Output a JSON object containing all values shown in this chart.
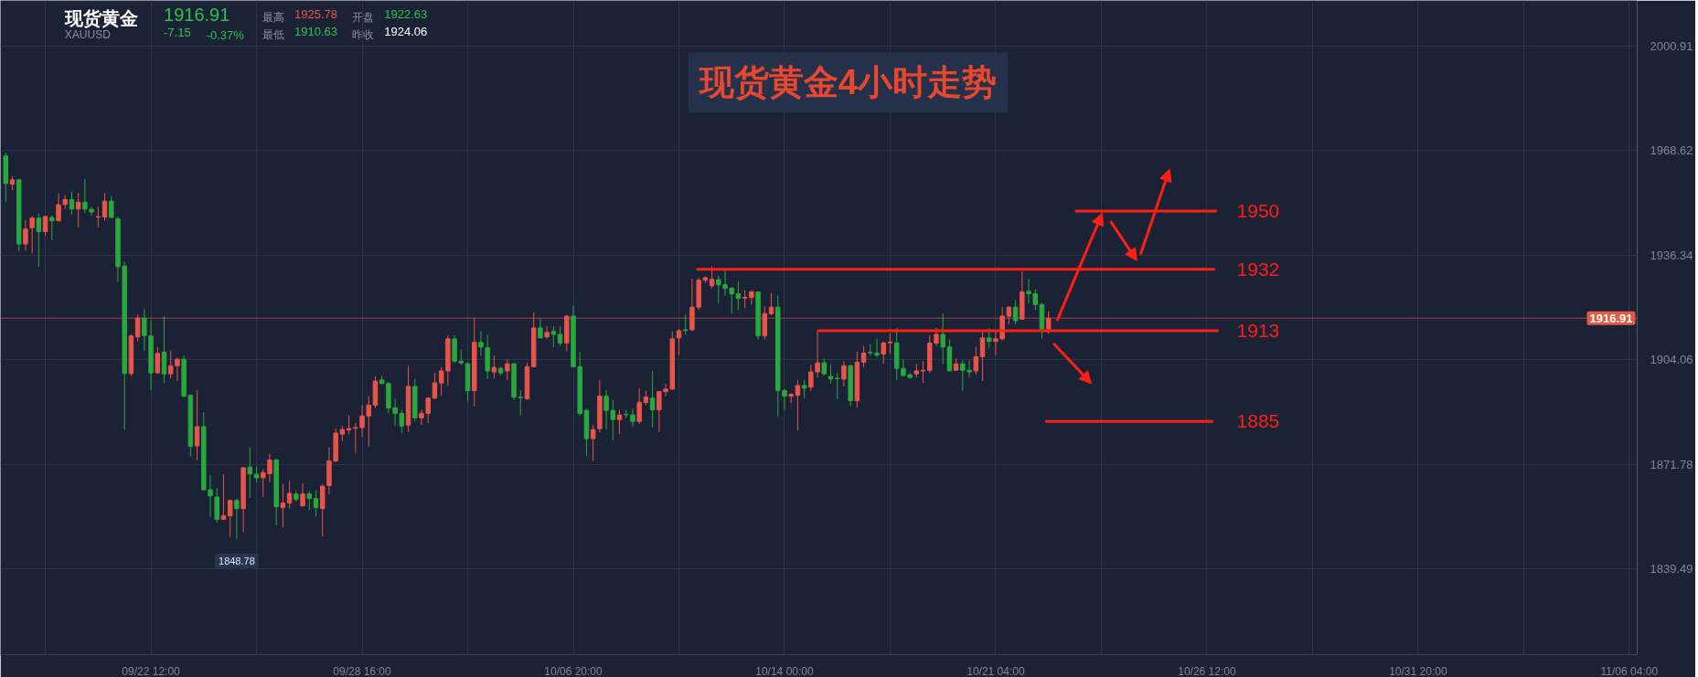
{
  "chart_data": {
    "type": "candlestick",
    "title": "现货黄金4小时走势",
    "categories": [
      null,
      null,
      null,
      null,
      null,
      null,
      null,
      null,
      null,
      null,
      null,
      null,
      null,
      null,
      null,
      null,
      null,
      null,
      null,
      null,
      null,
      null,
      "09/22 12:00",
      null,
      null,
      null,
      null,
      null,
      null,
      null,
      null,
      null,
      null,
      null,
      null,
      null,
      null,
      null,
      null,
      null,
      null,
      null,
      null,
      null,
      null,
      null,
      null,
      null,
      null,
      null,
      null,
      null,
      null,
      null,
      "09/28 16:00",
      null,
      null,
      null,
      null,
      null,
      null,
      null,
      null,
      null,
      null,
      null,
      null,
      null,
      null,
      null,
      null,
      null,
      null,
      null,
      null,
      null,
      null,
      null,
      null,
      null,
      null,
      null,
      null,
      null,
      null,
      null,
      "10/06 20:00",
      null,
      null,
      null,
      null,
      null,
      null,
      null,
      null,
      null,
      null,
      null,
      null,
      null,
      null,
      null,
      null,
      null,
      null,
      null,
      null,
      null,
      null,
      null,
      null,
      null,
      null,
      null,
      null,
      null,
      null,
      null,
      "10/14 00:00",
      null,
      null,
      null,
      null,
      null,
      null,
      null,
      null,
      null,
      null,
      null,
      null,
      null,
      null,
      null,
      null,
      null,
      null,
      null,
      null,
      null,
      null,
      null,
      null,
      null,
      null,
      null,
      null,
      null,
      null,
      null,
      "10/21 04:00",
      null,
      null,
      null,
      null,
      null,
      null,
      null,
      null,
      null,
      null,
      null,
      null,
      null,
      null,
      null,
      null,
      null,
      null,
      null,
      null,
      null,
      null,
      null,
      null,
      null,
      null,
      null,
      null,
      null,
      null,
      null,
      "10/26 12:00",
      null,
      null,
      null,
      null,
      null,
      null,
      null,
      null,
      null,
      null,
      null,
      null,
      null,
      null,
      null,
      null,
      null,
      null,
      null,
      null,
      null,
      null,
      null,
      null,
      null,
      null,
      null,
      null,
      null,
      null,
      null,
      "10/31 20:00",
      null,
      null,
      null,
      null,
      null,
      null,
      null,
      null,
      null,
      null,
      null,
      null,
      null,
      null,
      null,
      null,
      null,
      null,
      null,
      null,
      null,
      null,
      null,
      null,
      null,
      null,
      null,
      null,
      null,
      null,
      null,
      "11/06 04:00"
    ],
    "ohlc": [
      [
        1967.0,
        1968.0,
        1952.7,
        1958.5
      ],
      [
        1958.3,
        1960.8,
        1956.4,
        1959.6
      ],
      [
        1959.6,
        1959.9,
        1937.5,
        1939.8
      ],
      [
        1939.8,
        1947.2,
        1937.7,
        1944.4
      ],
      [
        1944.8,
        1948.5,
        1937.0,
        1947.8
      ],
      [
        1947.8,
        1949.3,
        1932.8,
        1943.6
      ],
      [
        1943.6,
        1948.5,
        1942.3,
        1948.3
      ],
      [
        1948.0,
        1948.7,
        1940.9,
        1947.0
      ],
      [
        1947.0,
        1955.5,
        1946.7,
        1951.9
      ],
      [
        1952.0,
        1954.9,
        1950.6,
        1953.5
      ],
      [
        1953.5,
        1956.0,
        1948.9,
        1950.6
      ],
      [
        1950.6,
        1955.5,
        1945.0,
        1952.7
      ],
      [
        1952.7,
        1959.9,
        1949.5,
        1950.6
      ],
      [
        1950.5,
        1951.3,
        1948.6,
        1949.7
      ],
      [
        1948.1,
        1951.3,
        1945.0,
        1948.2
      ],
      [
        1948.1,
        1955.5,
        1947.0,
        1953.0
      ],
      [
        1953.0,
        1954.6,
        1947.8,
        1948.0
      ],
      [
        1947.6,
        1948.3,
        1928.1,
        1932.8
      ],
      [
        1933.0,
        1934.4,
        1882.4,
        1899.8
      ],
      [
        1899.8,
        1911.9,
        1899.0,
        1911.4
      ],
      [
        1911.1,
        1918.0,
        1909.7,
        1916.9
      ],
      [
        1916.9,
        1919.7,
        1906.8,
        1911.5
      ],
      [
        1911.4,
        1916.1,
        1894.7,
        1900.0
      ],
      [
        1900.0,
        1908.0,
        1899.7,
        1906.0
      ],
      [
        1906.4,
        1917.5,
        1896.8,
        1899.7
      ],
      [
        1899.7,
        1906.9,
        1898.3,
        1902.2
      ],
      [
        1902.2,
        1904.7,
        1897.5,
        1904.2
      ],
      [
        1904.2,
        1905.3,
        1892.5,
        1892.8
      ],
      [
        1893.1,
        1893.2,
        1874.2,
        1877.3
      ],
      [
        1877.5,
        1894.7,
        1873.1,
        1883.4
      ],
      [
        1883.4,
        1887.8,
        1863.8,
        1863.9
      ],
      [
        1863.9,
        1868.4,
        1855.6,
        1862.0
      ],
      [
        1861.7,
        1864.5,
        1853.7,
        1854.8
      ],
      [
        1854.8,
        1868.7,
        1854.7,
        1855.9
      ],
      [
        1855.9,
        1860.9,
        1849.3,
        1860.6
      ],
      [
        1860.6,
        1861.2,
        1848.78,
        1858.1
      ],
      [
        1858.1,
        1871.0,
        1850.9,
        1870.7
      ],
      [
        1870.9,
        1877.0,
        1861.4,
        1868.8
      ],
      [
        1868.7,
        1871.2,
        1866.2,
        1867.6
      ],
      [
        1867.6,
        1870.3,
        1861.7,
        1869.2
      ],
      [
        1868.9,
        1875.0,
        1866.2,
        1873.1
      ],
      [
        1873.1,
        1873.6,
        1852.9,
        1858.7
      ],
      [
        1858.4,
        1865.6,
        1852.3,
        1859.8
      ],
      [
        1859.8,
        1866.7,
        1858.1,
        1862.8
      ],
      [
        1862.6,
        1863.7,
        1860.3,
        1860.9
      ],
      [
        1858.9,
        1865.9,
        1858.8,
        1862.6
      ],
      [
        1862.6,
        1863.4,
        1857.6,
        1861.2
      ],
      [
        1861.2,
        1863.7,
        1855.6,
        1858.4
      ],
      [
        1858.1,
        1865.6,
        1849.5,
        1865.0
      ],
      [
        1865.2,
        1877.0,
        1862.6,
        1872.8
      ],
      [
        1872.8,
        1882.8,
        1872.5,
        1881.4
      ],
      [
        1881.1,
        1883.6,
        1878.9,
        1882.5
      ],
      [
        1882.4,
        1887.0,
        1881.1,
        1882.8
      ],
      [
        1882.9,
        1884.5,
        1875.3,
        1883.1
      ],
      [
        1883.1,
        1890.0,
        1880.3,
        1886.7
      ],
      [
        1886.7,
        1892.8,
        1877.3,
        1890.0
      ],
      [
        1890.0,
        1898.9,
        1889.2,
        1897.5
      ],
      [
        1897.8,
        1899.2,
        1896.6,
        1896.7
      ],
      [
        1896.7,
        1897.2,
        1887.5,
        1889.2
      ],
      [
        1889.2,
        1892.0,
        1883.6,
        1887.5
      ],
      [
        1887.5,
        1888.6,
        1881.4,
        1883.6
      ],
      [
        1883.9,
        1902.2,
        1881.7,
        1895.8
      ],
      [
        1895.8,
        1898.1,
        1885.0,
        1886.1
      ],
      [
        1886.1,
        1888.6,
        1883.9,
        1887.5
      ],
      [
        1887.5,
        1892.5,
        1884.5,
        1892.2
      ],
      [
        1892.2,
        1900.0,
        1892.0,
        1896.9
      ],
      [
        1896.9,
        1901.9,
        1893.1,
        1900.6
      ],
      [
        1900.6,
        1911.7,
        1896.1,
        1910.5
      ],
      [
        1910.5,
        1911.7,
        1903.1,
        1903.6
      ],
      [
        1903.6,
        1907.2,
        1902.5,
        1903.1
      ],
      [
        1902.8,
        1903.3,
        1891.1,
        1894.5
      ],
      [
        1894.5,
        1916.9,
        1889.7,
        1909.4
      ],
      [
        1909.4,
        1912.8,
        1905.3,
        1908.0
      ],
      [
        1907.8,
        1911.9,
        1898.1,
        1900.6
      ],
      [
        1900.3,
        1905.3,
        1898.3,
        1901.7
      ],
      [
        1901.4,
        1901.9,
        1899.2,
        1900.0
      ],
      [
        1900.6,
        1904.2,
        1897.8,
        1902.8
      ],
      [
        1902.8,
        1903.1,
        1891.7,
        1892.5
      ],
      [
        1892.5,
        1894.7,
        1887.0,
        1892.3
      ],
      [
        1892.0,
        1903.1,
        1891.7,
        1901.9
      ],
      [
        1901.9,
        1918.6,
        1901.7,
        1913.9
      ],
      [
        1913.9,
        1916.9,
        1910.7,
        1910.8
      ],
      [
        1911.1,
        1914.4,
        1910.5,
        1912.5
      ],
      [
        1912.8,
        1914.4,
        1908.0,
        1911.9
      ],
      [
        1911.9,
        1914.4,
        1908.3,
        1909.2
      ],
      [
        1909.2,
        1917.8,
        1906.7,
        1917.5
      ],
      [
        1917.5,
        1920.8,
        1901.7,
        1901.9
      ],
      [
        1901.9,
        1906.4,
        1886.7,
        1887.5
      ],
      [
        1888.4,
        1888.9,
        1874.5,
        1879.7
      ],
      [
        1879.7,
        1883.9,
        1872.8,
        1882.5
      ],
      [
        1882.8,
        1897.8,
        1881.7,
        1892.8
      ],
      [
        1892.8,
        1894.7,
        1882.5,
        1888.4
      ],
      [
        1888.4,
        1891.7,
        1879.2,
        1885.6
      ],
      [
        1885.6,
        1888.6,
        1881.1,
        1887.0
      ],
      [
        1887.2,
        1888.6,
        1886.1,
        1887.1
      ],
      [
        1887.0,
        1888.9,
        1883.4,
        1885.0
      ],
      [
        1885.0,
        1895.3,
        1884.2,
        1890.9
      ],
      [
        1890.9,
        1894.5,
        1890.0,
        1892.5
      ],
      [
        1892.2,
        1900.6,
        1883.1,
        1888.6
      ],
      [
        1888.6,
        1894.3,
        1881.7,
        1894.2
      ],
      [
        1894.2,
        1896.7,
        1892.8,
        1895.0
      ],
      [
        1895.0,
        1912.8,
        1894.7,
        1910.5
      ],
      [
        1910.8,
        1913.6,
        1905.5,
        1913.0
      ],
      [
        1913.3,
        1918.0,
        1911.7,
        1913.1
      ],
      [
        1913.3,
        1929.1,
        1912.8,
        1920.3
      ],
      [
        1920.3,
        1929.4,
        1919.4,
        1928.6
      ],
      [
        1928.6,
        1929.7,
        1927.7,
        1929.4
      ],
      [
        1926.9,
        1932.9,
        1926.1,
        1928.9
      ],
      [
        1928.8,
        1930.0,
        1921.4,
        1927.2
      ],
      [
        1927.2,
        1931.9,
        1923.9,
        1926.1
      ],
      [
        1926.1,
        1926.6,
        1918.3,
        1924.4
      ],
      [
        1924.4,
        1928.3,
        1919.4,
        1923.0
      ],
      [
        1923.1,
        1925.5,
        1920.0,
        1923.3
      ],
      [
        1923.3,
        1925.5,
        1921.1,
        1925.0
      ],
      [
        1925.0,
        1925.1,
        1910.3,
        1911.4
      ],
      [
        1911.4,
        1920.5,
        1910.3,
        1918.3
      ],
      [
        1918.3,
        1924.7,
        1917.8,
        1920.3
      ],
      [
        1920.3,
        1923.9,
        1886.4,
        1894.5
      ],
      [
        1894.5,
        1895.0,
        1888.6,
        1892.8
      ],
      [
        1892.8,
        1893.6,
        1890.6,
        1893.4
      ],
      [
        1893.1,
        1897.8,
        1882.2,
        1896.1
      ],
      [
        1896.1,
        1897.8,
        1892.2,
        1895.3
      ],
      [
        1895.6,
        1902.5,
        1894.5,
        1900.3
      ],
      [
        1900.3,
        1913.0,
        1898.6,
        1903.1
      ],
      [
        1903.1,
        1904.4,
        1899.2,
        1899.7
      ],
      [
        1898.9,
        1902.5,
        1896.7,
        1898.1
      ],
      [
        1898.3,
        1900.0,
        1891.9,
        1898.2
      ],
      [
        1898.1,
        1903.6,
        1895.8,
        1902.2
      ],
      [
        1902.2,
        1902.5,
        1889.7,
        1891.4
      ],
      [
        1891.4,
        1906.6,
        1889.4,
        1903.3
      ],
      [
        1903.3,
        1908.3,
        1901.7,
        1906.1
      ],
      [
        1906.4,
        1908.9,
        1905.3,
        1906.2
      ],
      [
        1906.1,
        1910.5,
        1904.7,
        1905.5
      ],
      [
        1905.8,
        1909.7,
        1902.8,
        1909.2
      ],
      [
        1909.3,
        1912.2,
        1905.8,
        1909.5
      ],
      [
        1909.2,
        1913.9,
        1897.8,
        1901.4
      ],
      [
        1901.4,
        1904.2,
        1898.9,
        1899.2
      ],
      [
        1899.4,
        1900.0,
        1898.1,
        1898.6
      ],
      [
        1899.7,
        1902.8,
        1898.6,
        1900.6
      ],
      [
        1900.6,
        1903.6,
        1896.9,
        1900.8
      ],
      [
        1900.8,
        1911.6,
        1900.0,
        1909.2
      ],
      [
        1909.2,
        1913.9,
        1908.3,
        1911.9
      ],
      [
        1911.9,
        1918.3,
        1902.8,
        1908.0
      ],
      [
        1908.0,
        1910.3,
        1900.5,
        1900.6
      ],
      [
        1900.8,
        1904.4,
        1900.7,
        1902.8
      ],
      [
        1902.8,
        1903.9,
        1894.5,
        1900.8
      ],
      [
        1900.8,
        1903.9,
        1898.6,
        1900.3
      ],
      [
        1900.6,
        1908.0,
        1899.5,
        1905.0
      ],
      [
        1905.0,
        1913.0,
        1897.5,
        1910.8
      ],
      [
        1910.8,
        1913.9,
        1907.5,
        1909.7
      ],
      [
        1909.7,
        1913.0,
        1905.5,
        1910.5
      ],
      [
        1910.5,
        1920.3,
        1910.0,
        1917.5
      ],
      [
        1917.5,
        1920.5,
        1915.0,
        1920.3
      ],
      [
        1920.3,
        1922.5,
        1915.0,
        1916.1
      ],
      [
        1916.6,
        1931.3,
        1916.4,
        1925.0
      ],
      [
        1925.2,
        1929.1,
        1921.4,
        1924.4
      ],
      [
        1924.4,
        1925.8,
        1919.4,
        1921.1
      ],
      [
        1921.1,
        1921.6,
        1910.63,
        1913.6
      ],
      [
        1913.6,
        1919.0,
        1912.0,
        1916.91
      ],
      null,
      null,
      null,
      null,
      null,
      null,
      null,
      null,
      null,
      null,
      null,
      null,
      null,
      null,
      null,
      null,
      null,
      null,
      null,
      null,
      null,
      null,
      null,
      null,
      null,
      null,
      null,
      null,
      null,
      null,
      null,
      null,
      null,
      null,
      null,
      null,
      null,
      null,
      null,
      null,
      null,
      null,
      null,
      null,
      null,
      null,
      null,
      null,
      null,
      null,
      null,
      null,
      null,
      null,
      null,
      null,
      null,
      null,
      null,
      null,
      null,
      null,
      null,
      null,
      null,
      null,
      null,
      null,
      null,
      null,
      null,
      null,
      null,
      null,
      null,
      null,
      null,
      null,
      null,
      null,
      null,
      null,
      null,
      null,
      null,
      null,
      null,
      null
    ],
    "colors": [
      "#28a83e",
      "#e9544a",
      "#28a83e",
      "#e9544a",
      "#e9544a",
      "#28a83e",
      "#e9544a",
      "#28a83e",
      "#e9544a",
      "#e9544a",
      "#28a83e",
      "#e9544a",
      "#28a83e",
      "#28a83e",
      "#e9544a",
      "#e9544a",
      "#28a83e",
      "#28a83e",
      "#28a83e",
      "#e9544a",
      "#e9544a",
      "#28a83e",
      "#28a83e",
      "#e9544a",
      "#28a83e",
      "#e9544a",
      "#e9544a",
      "#28a83e",
      "#28a83e",
      "#e9544a",
      "#28a83e",
      "#28a83e",
      "#28a83e",
      "#e9544a",
      "#e9544a",
      "#28a83e",
      "#e9544a",
      "#28a83e",
      "#28a83e",
      "#e9544a",
      "#e9544a",
      "#28a83e",
      "#e9544a",
      "#e9544a",
      "#28a83e",
      "#e9544a",
      "#28a83e",
      "#28a83e",
      "#e9544a",
      "#e9544a",
      "#e9544a",
      "#e9544a",
      "#e9544a",
      "#e9544a",
      "#e9544a",
      "#e9544a",
      "#e9544a",
      "#28a83e",
      "#28a83e",
      "#28a83e",
      "#28a83e",
      "#e9544a",
      "#28a83e",
      "#e9544a",
      "#e9544a",
      "#e9544a",
      "#e9544a",
      "#e9544a",
      "#28a83e",
      "#28a83e",
      "#28a83e",
      "#e9544a",
      "#28a83e",
      "#28a83e",
      "#e9544a",
      "#28a83e",
      "#e9544a",
      "#28a83e",
      "#28a83e",
      "#e9544a",
      "#e9544a",
      "#28a83e",
      "#e9544a",
      "#28a83e",
      "#28a83e",
      "#e9544a",
      "#28a83e",
      "#28a83e",
      "#28a83e",
      "#e9544a",
      "#e9544a",
      "#28a83e",
      "#28a83e",
      "#e9544a",
      "#28a83e",
      "#28a83e",
      "#e9544a",
      "#e9544a",
      "#28a83e",
      "#e9544a",
      "#e9544a",
      "#e9544a",
      "#e9544a",
      "#28a83e",
      "#e9544a",
      "#e9544a",
      "#e9544a",
      "#e9544a",
      "#28a83e",
      "#28a83e",
      "#28a83e",
      "#28a83e",
      "#e9544a",
      "#e9544a",
      "#28a83e",
      "#e9544a",
      "#e9544a",
      "#28a83e",
      "#28a83e",
      "#e9544a",
      "#e9544a",
      "#28a83e",
      "#e9544a",
      "#e9544a",
      "#28a83e",
      "#28a83e",
      "#28a83e",
      "#e9544a",
      "#28a83e",
      "#e9544a",
      "#e9544a",
      "#28a83e",
      "#28a83e",
      "#e9544a",
      "#e9544a",
      "#28a83e",
      "#28a83e",
      "#28a83e",
      "#e9544a",
      "#e9544a",
      "#e9544a",
      "#e9544a",
      "#28a83e",
      "#28a83e",
      "#e9544a",
      "#28a83e",
      "#28a83e",
      "#e9544a",
      "#e9544a",
      "#28a83e",
      "#e9544a",
      "#e9544a",
      "#e9544a",
      "#28a83e",
      "#e9544a",
      "#28a83e",
      "#28a83e",
      "#28a83e",
      "#e9544a",
      null,
      null,
      null,
      null,
      null,
      null,
      null,
      null,
      null,
      null,
      null,
      null,
      null,
      null,
      null,
      null,
      null,
      null,
      null,
      null,
      null,
      null,
      null,
      null,
      null,
      null,
      null,
      null,
      null,
      null,
      null,
      null,
      null,
      null,
      null,
      null,
      null,
      null,
      null,
      null,
      null,
      null,
      null,
      null,
      null,
      null,
      null,
      null,
      null,
      null,
      null,
      null,
      null,
      null,
      null,
      null,
      null,
      null,
      null,
      null,
      null,
      null,
      null,
      null,
      null,
      null,
      null,
      null,
      null,
      null,
      null,
      null,
      null,
      null,
      null,
      null,
      null,
      null,
      null,
      null,
      null,
      null,
      null,
      null,
      null,
      null,
      null,
      null
    ],
    "ylim": [
      1813,
      2015
    ],
    "yticks": [
      1839.49,
      1871.78,
      1904.06,
      1936.34,
      1968.62,
      2000.91
    ],
    "grid": true,
    "ref_lines": [
      {
        "axis": "y",
        "value": 1916.91,
        "label": "1916.91",
        "color": "#a8423f"
      },
      {
        "axis": "y",
        "value": 1950,
        "label": "1950",
        "color": "#ff1e14"
      },
      {
        "axis": "y",
        "value": 1932,
        "label": "1932",
        "color": "#ff1e14"
      },
      {
        "axis": "y",
        "value": 1913,
        "label": "1913",
        "color": "#ff1e14"
      },
      {
        "axis": "y",
        "value": 1885,
        "label": "1885",
        "color": "#ff1e14"
      }
    ],
    "annotations": [
      "现货黄金",
      "XAUUSD",
      "1916.91",
      "-7.15",
      "-0.37%",
      "最高",
      "1925.78",
      "开盘",
      "1922.63",
      "最低",
      "1910.63",
      "昨收",
      "1924.06",
      {
        "text": "1848.78",
        "y": 1848.78
      }
    ]
  }
}
